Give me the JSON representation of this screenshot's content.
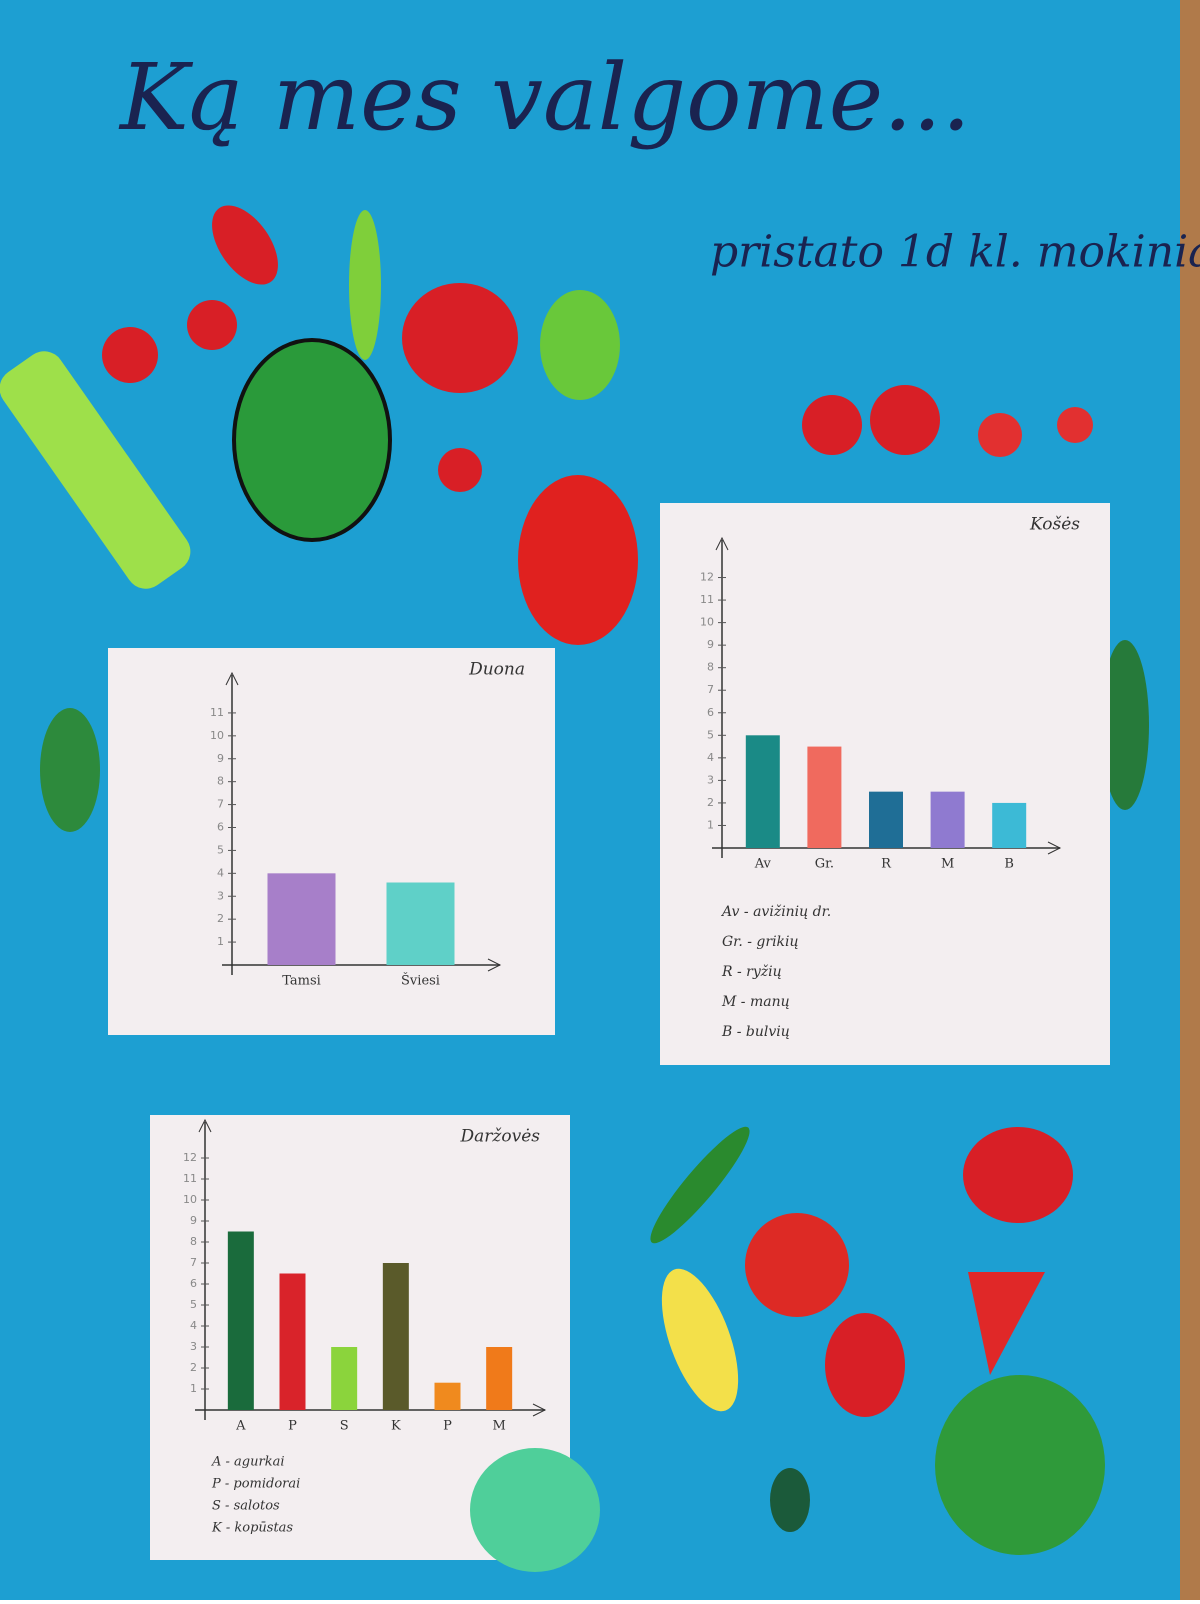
{
  "title": "Ką mes valgome...",
  "subtitle": "pristato 1d kl. mokinia",
  "chart_data": [
    {
      "type": "bar",
      "title": "Duona",
      "categories": [
        "Tamsi",
        "Šviesi"
      ],
      "values": [
        4,
        3.6
      ],
      "colors": [
        "#a77fc9",
        "#5fd0c8"
      ],
      "ylim": [
        0,
        12
      ],
      "yticks": [
        1,
        2,
        3,
        4,
        5,
        6,
        7,
        8,
        9,
        10,
        11
      ]
    },
    {
      "type": "bar",
      "title": "Košės",
      "categories": [
        "Av",
        "Gr.",
        "R",
        "M",
        "B"
      ],
      "values": [
        5,
        4.5,
        2.5,
        2.5,
        2
      ],
      "colors": [
        "#1a8a86",
        "#f06a5e",
        "#1f6e96",
        "#8f7ad0",
        "#3cbad6"
      ],
      "ylim": [
        0,
        13
      ],
      "yticks": [
        1,
        2,
        3,
        4,
        5,
        6,
        7,
        8,
        9,
        10,
        11,
        12
      ],
      "legend": [
        "Av - avižinių dr.",
        "Gr. - grikių",
        "R - ryžių",
        "M - manų",
        "B - bulvių"
      ]
    },
    {
      "type": "bar",
      "title": "Daržovės",
      "categories": [
        "A",
        "P",
        "S",
        "K",
        "P",
        "M"
      ],
      "values": [
        8.5,
        6.5,
        3,
        7,
        1.3,
        3
      ],
      "colors": [
        "#1a6b3c",
        "#d9232a",
        "#8bd43c",
        "#5a5a2a",
        "#f08a1e",
        "#f07a1a"
      ],
      "ylim": [
        0,
        13
      ],
      "yticks": [
        1,
        2,
        3,
        4,
        5,
        6,
        7,
        8,
        9,
        10,
        11,
        12
      ],
      "legend": [
        "A - agurkai",
        "P - pomidorai",
        "S - salotos",
        "K - kopūstas"
      ]
    }
  ]
}
